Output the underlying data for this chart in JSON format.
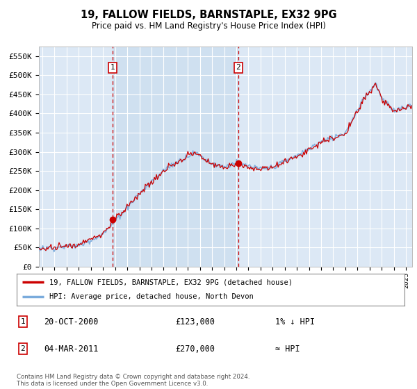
{
  "title": "19, FALLOW FIELDS, BARNSTAPLE, EX32 9PG",
  "subtitle": "Price paid vs. HM Land Registry's House Price Index (HPI)",
  "ylabel_ticks": [
    "£0",
    "£50K",
    "£100K",
    "£150K",
    "£200K",
    "£250K",
    "£300K",
    "£350K",
    "£400K",
    "£450K",
    "£500K",
    "£550K"
  ],
  "ytick_values": [
    0,
    50000,
    100000,
    150000,
    200000,
    250000,
    300000,
    350000,
    400000,
    450000,
    500000,
    550000
  ],
  "ylim": [
    0,
    575000
  ],
  "xlim_start": 1994.7,
  "xlim_end": 2025.5,
  "background_color": "#ffffff",
  "plot_background": "#dce8f5",
  "plot_background_between": "#cfe0f0",
  "grid_color": "#ffffff",
  "hpi_line_color": "#7aabdc",
  "price_line_color": "#cc0000",
  "marker1_date": 2000.8,
  "marker1_price": 123000,
  "marker2_date": 2011.17,
  "marker2_price": 270000,
  "vline_color": "#cc0000",
  "annotation_box_color": "#cc0000",
  "legend_label1": "19, FALLOW FIELDS, BARNSTAPLE, EX32 9PG (detached house)",
  "legend_label2": "HPI: Average price, detached house, North Devon",
  "table_row1_date": "20-OCT-2000",
  "table_row1_price": "£123,000",
  "table_row1_hpi": "1% ↓ HPI",
  "table_row2_date": "04-MAR-2011",
  "table_row2_price": "£270,000",
  "table_row2_hpi": "≈ HPI",
  "footnote": "Contains HM Land Registry data © Crown copyright and database right 2024.\nThis data is licensed under the Open Government Licence v3.0.",
  "xtick_years": [
    1995,
    1996,
    1997,
    1998,
    1999,
    2000,
    2001,
    2002,
    2003,
    2004,
    2005,
    2006,
    2007,
    2008,
    2009,
    2010,
    2011,
    2012,
    2013,
    2014,
    2015,
    2016,
    2017,
    2018,
    2019,
    2020,
    2021,
    2022,
    2023,
    2024,
    2025
  ]
}
